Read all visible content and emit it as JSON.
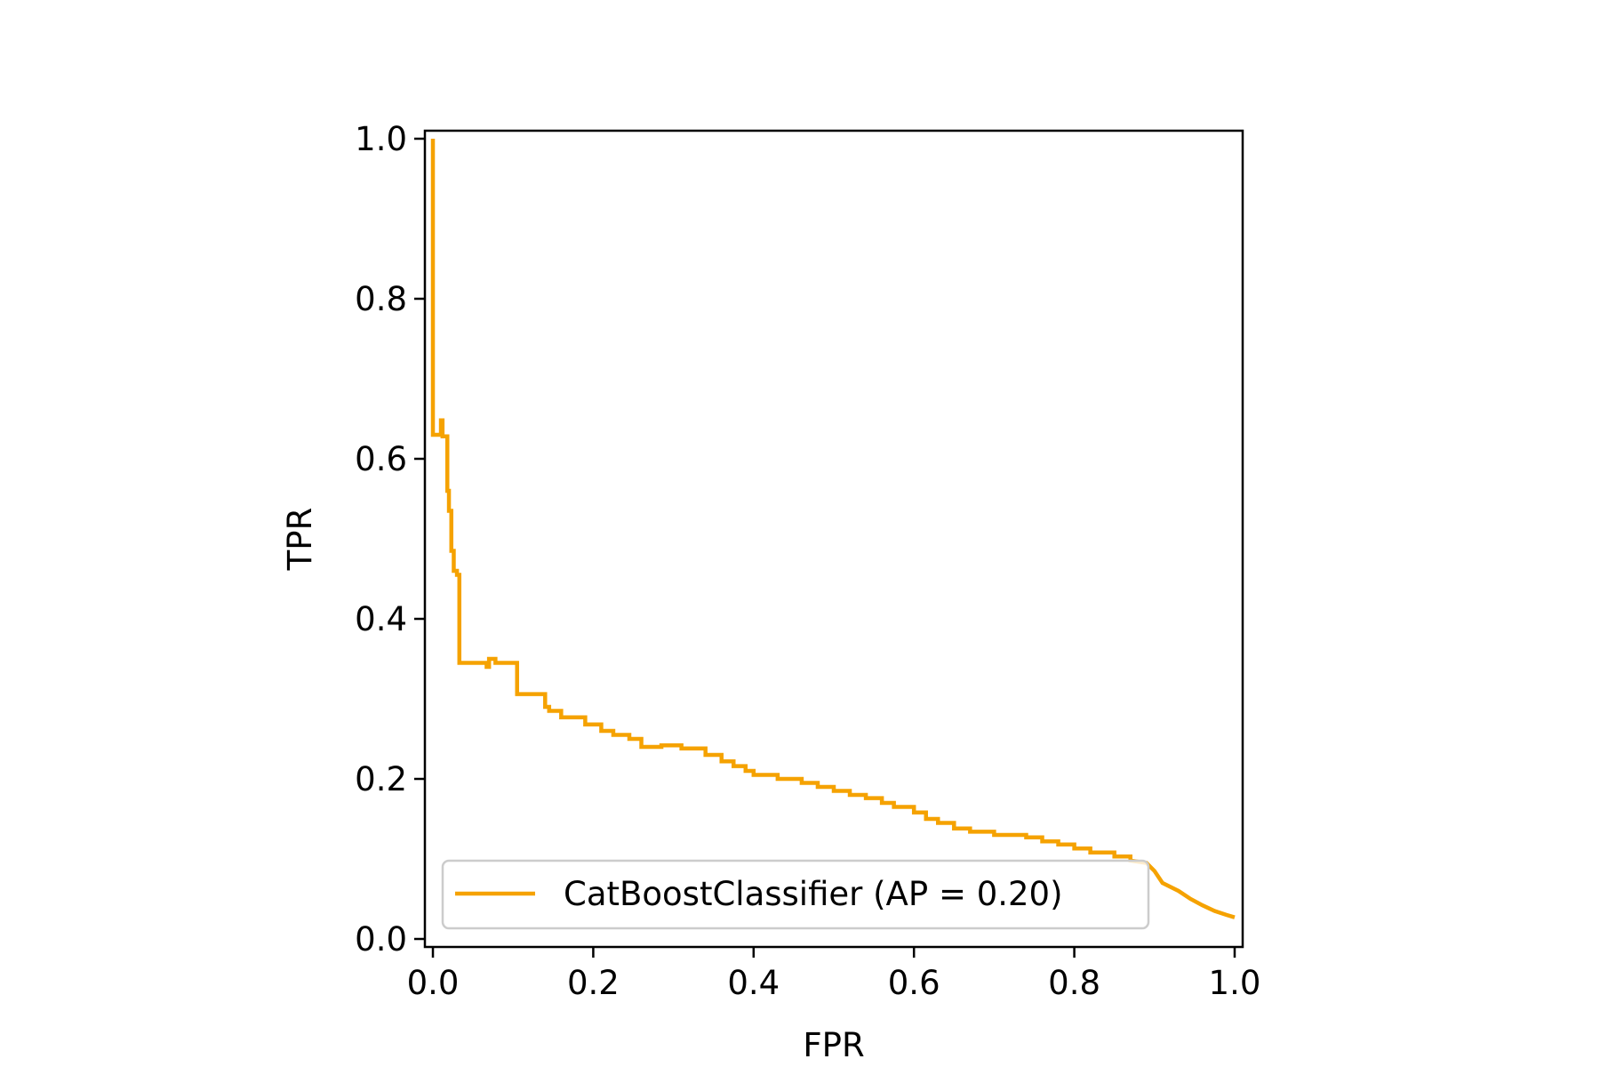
{
  "chart_data": {
    "type": "line",
    "title": "",
    "xlabel": "FPR",
    "ylabel": "TPR",
    "xlim": [
      -0.01,
      1.01
    ],
    "ylim": [
      -0.01,
      1.01
    ],
    "x_ticks": [
      "0.0",
      "0.2",
      "0.4",
      "0.6",
      "0.8",
      "1.0"
    ],
    "y_ticks": [
      "0.0",
      "0.2",
      "0.4",
      "0.6",
      "0.8",
      "1.0"
    ],
    "grid": false,
    "legend_position": "lower-left",
    "series": [
      {
        "name": "CatBoostClassifier (AP = 0.20)",
        "color": "#f5a200",
        "x": [
          0.0,
          0.0,
          0.002,
          0.002,
          0.01,
          0.01,
          0.012,
          0.012,
          0.018,
          0.018,
          0.02,
          0.02,
          0.023,
          0.023,
          0.026,
          0.026,
          0.03,
          0.03,
          0.033,
          0.033,
          0.035,
          0.035,
          0.067,
          0.067,
          0.07,
          0.07,
          0.075,
          0.075,
          0.078,
          0.078,
          0.1,
          0.1,
          0.105,
          0.105,
          0.14,
          0.14,
          0.145,
          0.145,
          0.15,
          0.15,
          0.16,
          0.16,
          0.19,
          0.19,
          0.21,
          0.21,
          0.225,
          0.225,
          0.245,
          0.245,
          0.26,
          0.26,
          0.285,
          0.285,
          0.31,
          0.31,
          0.32,
          0.32,
          0.34,
          0.34,
          0.36,
          0.36,
          0.375,
          0.375,
          0.39,
          0.39,
          0.4,
          0.4,
          0.43,
          0.43,
          0.44,
          0.44,
          0.46,
          0.46,
          0.48,
          0.48,
          0.5,
          0.5,
          0.52,
          0.52,
          0.54,
          0.54,
          0.56,
          0.56,
          0.575,
          0.575,
          0.6,
          0.6,
          0.615,
          0.615,
          0.63,
          0.63,
          0.65,
          0.65,
          0.67,
          0.67,
          0.7,
          0.7,
          0.74,
          0.74,
          0.76,
          0.76,
          0.78,
          0.78,
          0.8,
          0.8,
          0.82,
          0.82,
          0.85,
          0.85,
          0.87,
          0.87,
          0.89,
          0.9,
          0.91,
          0.93,
          0.945,
          0.96,
          0.975,
          0.99,
          1.0
        ],
        "y": [
          1.0,
          0.63,
          0.63,
          0.63,
          0.63,
          0.648,
          0.648,
          0.628,
          0.628,
          0.56,
          0.56,
          0.535,
          0.535,
          0.485,
          0.485,
          0.46,
          0.46,
          0.455,
          0.455,
          0.345,
          0.345,
          0.345,
          0.345,
          0.34,
          0.34,
          0.35,
          0.35,
          0.35,
          0.35,
          0.345,
          0.345,
          0.345,
          0.345,
          0.306,
          0.306,
          0.29,
          0.29,
          0.285,
          0.285,
          0.285,
          0.285,
          0.277,
          0.277,
          0.268,
          0.268,
          0.26,
          0.26,
          0.255,
          0.255,
          0.25,
          0.25,
          0.24,
          0.24,
          0.242,
          0.242,
          0.238,
          0.238,
          0.238,
          0.238,
          0.23,
          0.23,
          0.222,
          0.222,
          0.216,
          0.216,
          0.21,
          0.21,
          0.205,
          0.205,
          0.2,
          0.2,
          0.2,
          0.2,
          0.195,
          0.195,
          0.19,
          0.19,
          0.185,
          0.185,
          0.18,
          0.18,
          0.176,
          0.176,
          0.17,
          0.17,
          0.165,
          0.165,
          0.158,
          0.158,
          0.15,
          0.15,
          0.145,
          0.145,
          0.138,
          0.138,
          0.134,
          0.134,
          0.13,
          0.13,
          0.127,
          0.127,
          0.122,
          0.122,
          0.118,
          0.118,
          0.113,
          0.113,
          0.108,
          0.108,
          0.103,
          0.103,
          0.098,
          0.095,
          0.085,
          0.07,
          0.06,
          0.05,
          0.042,
          0.035,
          0.03,
          0.027
        ]
      }
    ]
  }
}
